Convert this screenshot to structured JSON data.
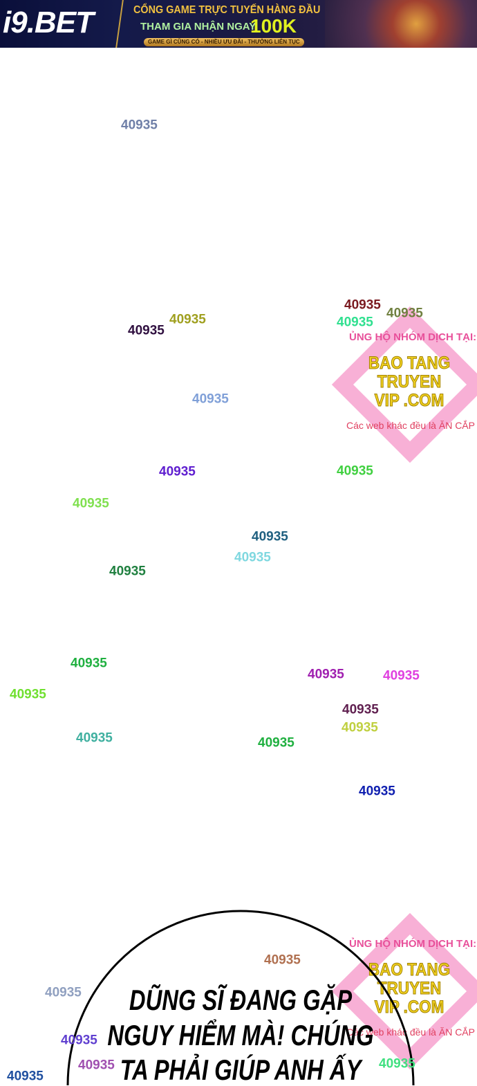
{
  "banner": {
    "logo": "i9.BET",
    "headline": "CỔNG GAME TRỰC TUYẾN HÀNG ĐẦU",
    "offer": "THAM GIA NHẬN NGAY",
    "amount": "100K",
    "tagline": "GAME GÌ CŨNG CÓ - NHIỀU ƯU ĐÃI - THƯỞNG LIÊN TỤC"
  },
  "watermark": {
    "line1": "ỦNG HỘ NHÓM DỊCH TẠI:",
    "site": "BAO TANG TRUYEN VIP .COM",
    "line3": "Các web khác đều là ĂN CẮP"
  },
  "overlay_numbers": [
    {
      "text": "40935",
      "color": "#7080a8"
    },
    {
      "text": "40935",
      "color": "#7a1a20"
    },
    {
      "text": "40935",
      "color": "#a0a020"
    },
    {
      "text": "40935",
      "color": "#708040"
    },
    {
      "text": "40935",
      "color": "#30e090"
    },
    {
      "text": "40935",
      "color": "#301040"
    },
    {
      "text": "40935",
      "color": "#80a0d8"
    },
    {
      "text": "40935",
      "color": "#6020d0"
    },
    {
      "text": "40935",
      "color": "#40d040"
    },
    {
      "text": "40935",
      "color": "#80e050"
    },
    {
      "text": "40935",
      "color": "#206080"
    },
    {
      "text": "40935",
      "color": "#80d8e0"
    },
    {
      "text": "40935",
      "color": "#208040"
    },
    {
      "text": "40935",
      "color": "#20b040"
    },
    {
      "text": "40935",
      "color": "#a020b0"
    },
    {
      "text": "40935",
      "color": "#e040e0"
    },
    {
      "text": "40935",
      "color": "#70e030"
    },
    {
      "text": "40935",
      "color": "#602050"
    },
    {
      "text": "40935",
      "color": "#c0d040"
    },
    {
      "text": "40935",
      "color": "#40b0a0"
    },
    {
      "text": "40935",
      "color": "#20b040"
    },
    {
      "text": "40935",
      "color": "#1020b0"
    },
    {
      "text": "40935",
      "color": "#b07050"
    },
    {
      "text": "40935",
      "color": "#90a0c0"
    },
    {
      "text": "40935",
      "color": "#6040d0"
    },
    {
      "text": "40935",
      "color": "#a050b0"
    },
    {
      "text": "40935",
      "color": "#2050a0"
    },
    {
      "text": "40935",
      "color": "#40e080"
    }
  ],
  "speech_bubble": {
    "lines": [
      "DŨNG SĨ ĐANG GẶP",
      "NGUY HIỂM MÀ! CHÚNG",
      "TA PHẢI GIÚP ANH ẤY"
    ]
  }
}
